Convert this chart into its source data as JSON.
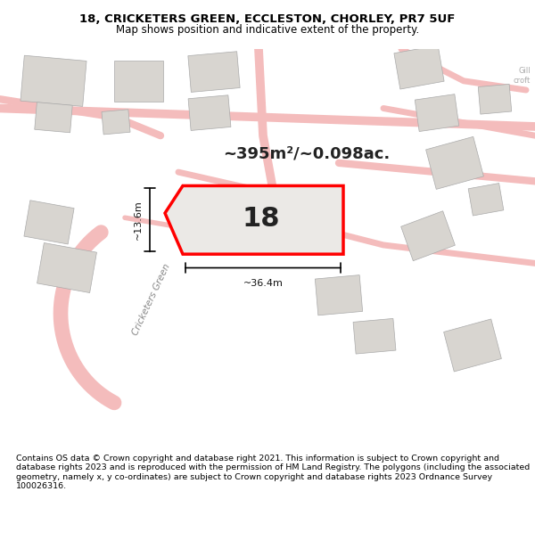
{
  "title_line1": "18, CRICKETERS GREEN, ECCLESTON, CHORLEY, PR7 5UF",
  "title_line2": "Map shows position and indicative extent of the property.",
  "footer_text": "Contains OS data © Crown copyright and database right 2021. This information is subject to Crown copyright and database rights 2023 and is reproduced with the permission of HM Land Registry. The polygons (including the associated geometry, namely x, y co-ordinates) are subject to Crown copyright and database rights 2023 Ordnance Survey 100026316.",
  "area_label": "~395m²/~0.098ac.",
  "number_label": "18",
  "width_label": "~36.4m",
  "height_label": "~13.6m",
  "bg_color": "#f0eeeb",
  "map_bg": "#f5f3f0",
  "road_color": "#f4bcbc",
  "building_color": "#d8d5d0",
  "highlight_color": "#ff0000",
  "highlight_fill": "#e8e6e3",
  "title_area_bg": "#ffffff",
  "footer_area_bg": "#ffffff",
  "road_line_color": "#e8a0a0"
}
